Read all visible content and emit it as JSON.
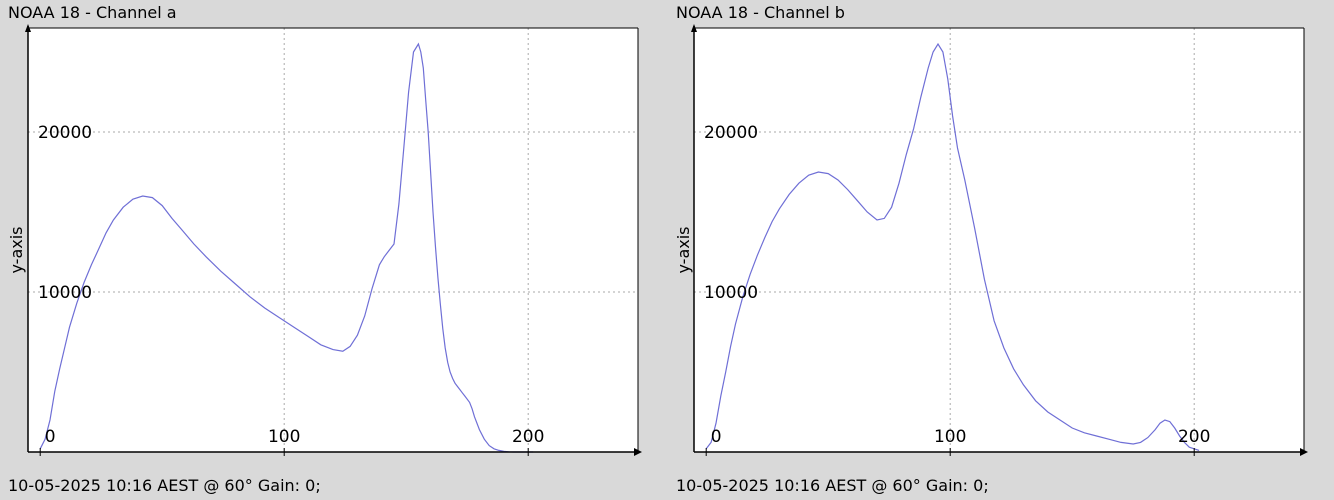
{
  "chart_data": [
    {
      "type": "line",
      "title": "NOAA 18 - Channel a",
      "footer": "10-05-2025 10:16 AEST @ 60° Gain: 0;",
      "ylabel": "y-axis",
      "xlabel": "",
      "xlim": [
        -5,
        245
      ],
      "ylim": [
        0,
        26500
      ],
      "xticks": [
        0,
        100,
        200
      ],
      "yticks": [
        10000,
        20000
      ],
      "grid": true,
      "line_color": "#6f6fd6",
      "series": [
        {
          "x": [
            0,
            2,
            4,
            6,
            8,
            10,
            12,
            15,
            18,
            21,
            24,
            27,
            30,
            34,
            38,
            42,
            46,
            50,
            54,
            58,
            63,
            68,
            74,
            80,
            86,
            92,
            98,
            104,
            110,
            115,
            120,
            124,
            127,
            130,
            133,
            136,
            139,
            141,
            143,
            145,
            147,
            149,
            151,
            153,
            155,
            156,
            157,
            158,
            159,
            160,
            161,
            162,
            163,
            164,
            165,
            166,
            167,
            168,
            169,
            170,
            171,
            172,
            173,
            174,
            175,
            176,
            177,
            178,
            180,
            182,
            184,
            186,
            188,
            190,
            192,
            194,
            196,
            198,
            200,
            202
          ],
          "y": [
            200,
            800,
            2000,
            3800,
            5200,
            6500,
            7800,
            9300,
            10600,
            11700,
            12700,
            13700,
            14500,
            15300,
            15800,
            16000,
            15900,
            15400,
            14600,
            13900,
            13000,
            12200,
            11300,
            10500,
            9700,
            9000,
            8400,
            7800,
            7200,
            6700,
            6400,
            6300,
            6600,
            7300,
            8500,
            10200,
            11700,
            12200,
            12600,
            13000,
            15500,
            19000,
            22500,
            25000,
            25500,
            25000,
            24000,
            22000,
            20000,
            17500,
            15000,
            12800,
            10900,
            9200,
            7700,
            6500,
            5600,
            5000,
            4600,
            4300,
            4100,
            3900,
            3700,
            3500,
            3300,
            3100,
            2700,
            2200,
            1400,
            800,
            400,
            200,
            100,
            40,
            10,
            0,
            0,
            0,
            0,
            0
          ]
        }
      ]
    },
    {
      "type": "line",
      "title": "NOAA 18 - Channel b",
      "footer": "10-05-2025 10:16 AEST @ 60° Gain: 0;",
      "ylabel": "y-axis",
      "xlabel": "",
      "xlim": [
        -5,
        245
      ],
      "ylim": [
        0,
        26500
      ],
      "xticks": [
        0,
        100,
        200
      ],
      "yticks": [
        10000,
        20000
      ],
      "grid": true,
      "line_color": "#6f6fd6",
      "series": [
        {
          "x": [
            0,
            2,
            4,
            6,
            8,
            10,
            12,
            15,
            18,
            21,
            24,
            27,
            30,
            34,
            38,
            42,
            46,
            50,
            54,
            58,
            62,
            66,
            70,
            73,
            76,
            79,
            82,
            85,
            88,
            91,
            93,
            95,
            97,
            99,
            101,
            103,
            106,
            110,
            114,
            118,
            122,
            126,
            130,
            135,
            140,
            145,
            150,
            155,
            160,
            165,
            170,
            175,
            178,
            181,
            184,
            186,
            188,
            190,
            192,
            194,
            196,
            198,
            200,
            202
          ],
          "y": [
            200,
            600,
            1800,
            3500,
            5000,
            6600,
            8000,
            9700,
            11100,
            12300,
            13400,
            14400,
            15200,
            16100,
            16800,
            17300,
            17500,
            17400,
            17000,
            16400,
            15700,
            15000,
            14500,
            14600,
            15300,
            16800,
            18600,
            20200,
            22200,
            24000,
            25000,
            25500,
            25000,
            23300,
            21000,
            19000,
            17000,
            14000,
            10800,
            8200,
            6500,
            5200,
            4200,
            3200,
            2500,
            2000,
            1500,
            1200,
            1000,
            800,
            600,
            500,
            600,
            900,
            1400,
            1800,
            2000,
            1900,
            1500,
            1000,
            600,
            300,
            200,
            100
          ]
        }
      ]
    }
  ]
}
